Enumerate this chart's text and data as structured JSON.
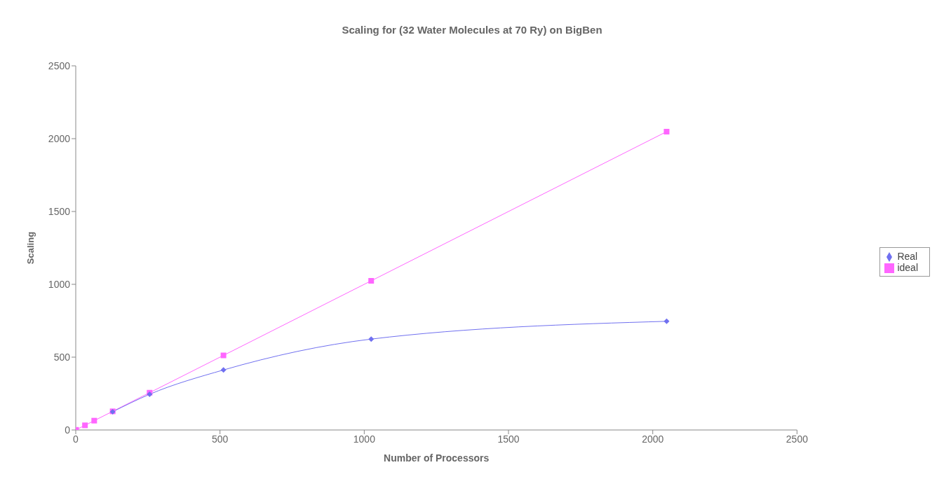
{
  "chart_data": {
    "type": "line",
    "title": "Scaling for (32 Water Molecules at 70 Ry) on BigBen",
    "xlabel": "Number of Processors",
    "ylabel": "Scaling",
    "x": [
      1,
      32,
      64,
      128,
      256,
      512,
      1024,
      2048
    ],
    "series": [
      {
        "name": "Real",
        "color": "#7070f0",
        "marker": "diamond",
        "values": [
          null,
          null,
          null,
          125,
          245,
          412,
          624,
          746
        ]
      },
      {
        "name": "ideal",
        "color": "#ff66ff",
        "marker": "square",
        "values": [
          1,
          32,
          64,
          128,
          256,
          512,
          1024,
          2048
        ]
      }
    ],
    "xlim": [
      0,
      2500
    ],
    "xticks": [
      0,
      500,
      1000,
      1500,
      2000,
      2500
    ],
    "ylim": [
      0,
      2500
    ],
    "yticks": [
      0,
      500,
      1000,
      1500,
      2000,
      2500
    ],
    "grid": false,
    "legend": "right",
    "line_style": "solid"
  }
}
